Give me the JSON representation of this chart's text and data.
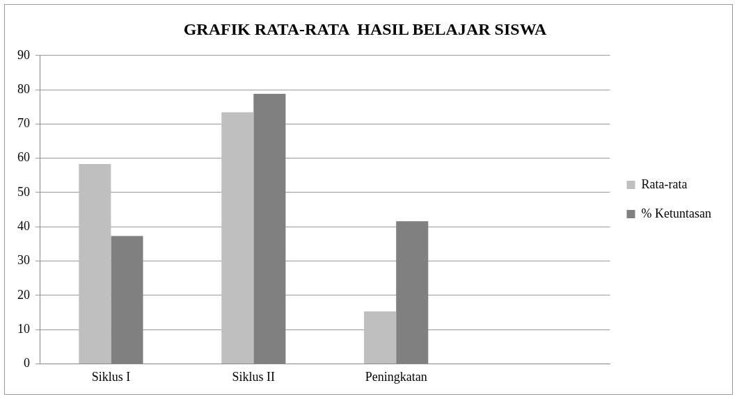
{
  "chart_data": {
    "type": "bar",
    "title": "GRAFIK RATA-RATA  HASIL BELAJAR SISWA",
    "categories": [
      "Siklus I",
      "Siklus II",
      "Peningkatan",
      null
    ],
    "series": [
      {
        "name": "Rata-rata",
        "color": "#bfbfbf",
        "values": [
          58.3,
          73.4,
          15.3,
          null
        ]
      },
      {
        "name": "% Ketuntasan",
        "color": "#808080",
        "values": [
          37.3,
          78.8,
          41.6,
          null
        ]
      }
    ],
    "ylim": [
      0,
      90
    ],
    "yticks": [
      0,
      10,
      20,
      30,
      40,
      50,
      60,
      70,
      80,
      90
    ],
    "grid": "y",
    "legend": "right"
  }
}
